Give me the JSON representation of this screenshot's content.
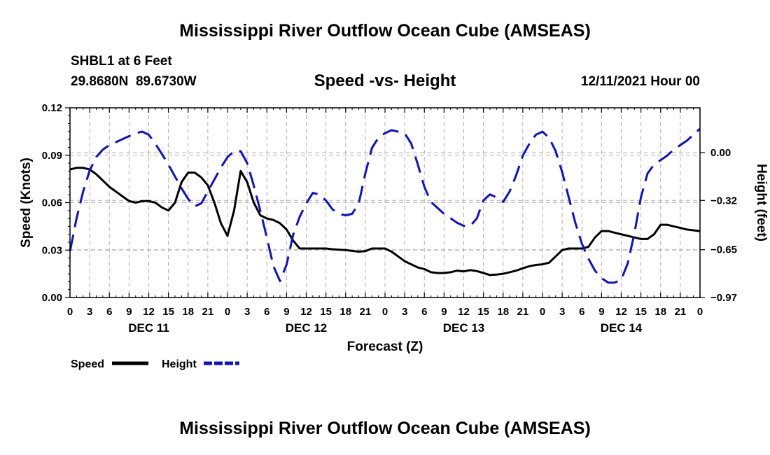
{
  "header": {
    "title": "Mississippi River Outflow Ocean Cube (AMSEAS)",
    "station": "SHBL1 at 6 Feet",
    "coordinates": "29.8680N  89.6730W",
    "datetime": "12/11/2021 Hour 00"
  },
  "footer": {
    "title": "Mississippi River Outflow Ocean Cube (AMSEAS)"
  },
  "colors": {
    "speed": "#000000",
    "height": "#1010cc",
    "grid": "#b4b4b4"
  },
  "chart_data": {
    "type": "line",
    "title": "Speed -vs- Height",
    "xlabel": "Forecast (Z)",
    "ylabel": "Speed (Knots)",
    "y2label": "Height (feet)",
    "xlim": [
      0,
      96
    ],
    "ylim": [
      0,
      0.12
    ],
    "y2lim": [
      -0.97,
      0.3
    ],
    "x_tick_labels": [
      "0",
      "3",
      "6",
      "9",
      "12",
      "15",
      "18",
      "21",
      "0",
      "3",
      "6",
      "9",
      "12",
      "15",
      "18",
      "21",
      "0",
      "3",
      "6",
      "9",
      "12",
      "15",
      "18",
      "21",
      "0",
      "3",
      "6",
      "9",
      "12",
      "15",
      "18",
      "21",
      "0"
    ],
    "y_ticks": [
      "0.00",
      "0.03",
      "0.06",
      "0.09",
      "0.12"
    ],
    "y2_ticks": [
      "0.00",
      "-0.32",
      "-0.65",
      "-0.97"
    ],
    "day_labels": [
      {
        "label": "DEC 11",
        "x": 12
      },
      {
        "label": "DEC 12",
        "x": 36
      },
      {
        "label": "DEC 13",
        "x": 60
      },
      {
        "label": "DEC 14",
        "x": 84
      }
    ],
    "series": [
      {
        "name": "Speed",
        "axis": "left",
        "style": "solid",
        "x": [
          0,
          1,
          2,
          3,
          4,
          5,
          6,
          7,
          8,
          9,
          10,
          11,
          12,
          13,
          14,
          15,
          16,
          17,
          18,
          19,
          20,
          21,
          22,
          23,
          24,
          25,
          26,
          27,
          28,
          29,
          30,
          31,
          32,
          33,
          34,
          35,
          36,
          37,
          38,
          39,
          40,
          41,
          42,
          43,
          44,
          45,
          46,
          47,
          48,
          49,
          50,
          51,
          52,
          53,
          54,
          55,
          56,
          57,
          58,
          59,
          60,
          61,
          62,
          63,
          64,
          65,
          66,
          67,
          68,
          69,
          70,
          71,
          72,
          73,
          74,
          75,
          76,
          77,
          78,
          79,
          80,
          81,
          82,
          83,
          84,
          85,
          86,
          87,
          88,
          89,
          90,
          91,
          92,
          93,
          94,
          95,
          96
        ],
        "values": [
          0.081,
          0.082,
          0.082,
          0.081,
          0.078,
          0.074,
          0.07,
          0.067,
          0.064,
          0.061,
          0.06,
          0.061,
          0.061,
          0.06,
          0.057,
          0.055,
          0.06,
          0.073,
          0.079,
          0.079,
          0.076,
          0.071,
          0.06,
          0.047,
          0.039,
          0.055,
          0.08,
          0.073,
          0.06,
          0.052,
          0.05,
          0.049,
          0.047,
          0.043,
          0.036,
          0.031,
          0.031,
          0.031,
          0.031,
          0.031,
          0.0305,
          0.0302,
          0.03,
          0.0295,
          0.029,
          0.0293,
          0.031,
          0.031,
          0.031,
          0.029,
          0.026,
          0.023,
          0.021,
          0.019,
          0.018,
          0.016,
          0.0155,
          0.0155,
          0.016,
          0.017,
          0.0165,
          0.0173,
          0.0167,
          0.0155,
          0.0142,
          0.0145,
          0.015,
          0.016,
          0.017,
          0.0185,
          0.0198,
          0.0206,
          0.021,
          0.022,
          0.026,
          0.03,
          0.031,
          0.031,
          0.031,
          0.032,
          0.038,
          0.042,
          0.042,
          0.041,
          0.04,
          0.039,
          0.038,
          0.037,
          0.037,
          0.04,
          0.046,
          0.046,
          0.045,
          0.044,
          0.043,
          0.0425,
          0.042
        ]
      },
      {
        "name": "Height",
        "axis": "right",
        "style": "dashed",
        "x": [
          0,
          1,
          2,
          3,
          4,
          5,
          6,
          7,
          8,
          9,
          10,
          11,
          12,
          13,
          14,
          15,
          16,
          17,
          18,
          19,
          20,
          21,
          22,
          23,
          24,
          25,
          26,
          27,
          28,
          29,
          30,
          31,
          32,
          33,
          34,
          35,
          36,
          37,
          38,
          39,
          40,
          41,
          42,
          43,
          44,
          45,
          46,
          47,
          48,
          49,
          50,
          51,
          52,
          53,
          54,
          55,
          56,
          57,
          58,
          59,
          60,
          61,
          62,
          63,
          64,
          65,
          66,
          67,
          68,
          69,
          70,
          71,
          72,
          73,
          74,
          75,
          76,
          77,
          78,
          79,
          80,
          81,
          82,
          83,
          84,
          85,
          86,
          87,
          88,
          89,
          90,
          91,
          92,
          93,
          94,
          95,
          96
        ],
        "values": [
          -0.66,
          -0.44,
          -0.26,
          -0.12,
          -0.03,
          0.02,
          0.05,
          0.07,
          0.09,
          0.11,
          0.13,
          0.14,
          0.12,
          0.06,
          -0.01,
          -0.08,
          -0.16,
          -0.24,
          -0.31,
          -0.36,
          -0.34,
          -0.26,
          -0.18,
          -0.1,
          -0.03,
          0.01,
          0.01,
          -0.07,
          -0.22,
          -0.39,
          -0.57,
          -0.76,
          -0.86,
          -0.75,
          -0.55,
          -0.43,
          -0.34,
          -0.27,
          -0.28,
          -0.32,
          -0.38,
          -0.41,
          -0.42,
          -0.41,
          -0.34,
          -0.14,
          0.03,
          0.1,
          0.13,
          0.15,
          0.14,
          0.13,
          0.06,
          -0.08,
          -0.23,
          -0.33,
          -0.37,
          -0.41,
          -0.44,
          -0.47,
          -0.49,
          -0.49,
          -0.44,
          -0.32,
          -0.28,
          -0.3,
          -0.33,
          -0.26,
          -0.15,
          -0.02,
          0.06,
          0.12,
          0.14,
          0.1,
          0.01,
          -0.13,
          -0.3,
          -0.47,
          -0.61,
          -0.71,
          -0.79,
          -0.84,
          -0.87,
          -0.87,
          -0.85,
          -0.74,
          -0.54,
          -0.3,
          -0.14,
          -0.08,
          -0.05,
          -0.02,
          0.02,
          0.05,
          0.08,
          0.12,
          0.16
        ]
      }
    ],
    "legend": [
      {
        "label": "Speed",
        "style": "solid"
      },
      {
        "label": "Height",
        "style": "dashed"
      }
    ],
    "legend_position": "bottom-left",
    "grid": true
  }
}
